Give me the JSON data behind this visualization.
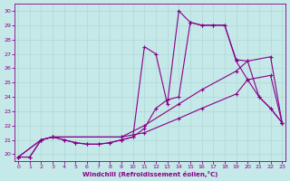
{
  "bg_color": "#c5e8e8",
  "line_color": "#880088",
  "grid_color": "#b0d8d8",
  "xlim": [
    -0.3,
    23.3
  ],
  "ylim": [
    19.5,
    30.5
  ],
  "xticks": [
    0,
    1,
    2,
    3,
    4,
    5,
    6,
    7,
    8,
    9,
    10,
    11,
    12,
    13,
    14,
    15,
    16,
    17,
    18,
    19,
    20,
    21,
    22,
    23
  ],
  "yticks": [
    20,
    21,
    22,
    23,
    24,
    25,
    26,
    27,
    28,
    29,
    30
  ],
  "xlabel": "Windchill (Refroidissement éolien,°C)",
  "s1_x": [
    0,
    1,
    2,
    3,
    4,
    5,
    6,
    7,
    8,
    9,
    10,
    11,
    12,
    13,
    14,
    15,
    16,
    17,
    18,
    19,
    20,
    21,
    22,
    23
  ],
  "s1_y": [
    19.8,
    19.8,
    21.0,
    21.2,
    21.0,
    20.8,
    20.7,
    20.7,
    20.8,
    21.0,
    21.2,
    27.5,
    27.0,
    23.5,
    30.0,
    29.2,
    29.0,
    29.0,
    29.0,
    26.6,
    26.5,
    24.0,
    23.2,
    22.2
  ],
  "s2_x": [
    0,
    1,
    2,
    3,
    4,
    5,
    6,
    7,
    8,
    9,
    10,
    11,
    12,
    13,
    14,
    15,
    16,
    17,
    18,
    19,
    20,
    21,
    22,
    23
  ],
  "s2_y": [
    19.8,
    19.8,
    21.0,
    21.2,
    21.0,
    20.8,
    20.7,
    20.7,
    20.8,
    21.0,
    21.2,
    21.8,
    23.2,
    23.8,
    24.0,
    29.2,
    29.0,
    29.0,
    29.0,
    26.5,
    25.2,
    24.0,
    23.2,
    22.2
  ],
  "s3_x": [
    0,
    2,
    3,
    9,
    11,
    14,
    16,
    19,
    20,
    22,
    23
  ],
  "s3_y": [
    19.8,
    21.0,
    21.2,
    21.2,
    21.5,
    22.5,
    23.2,
    24.2,
    25.2,
    25.5,
    22.2
  ],
  "s4_x": [
    0,
    2,
    3,
    9,
    11,
    14,
    16,
    19,
    20,
    22,
    23
  ],
  "s4_y": [
    19.8,
    21.0,
    21.2,
    21.2,
    22.0,
    23.5,
    24.5,
    25.8,
    26.5,
    26.8,
    22.2
  ]
}
